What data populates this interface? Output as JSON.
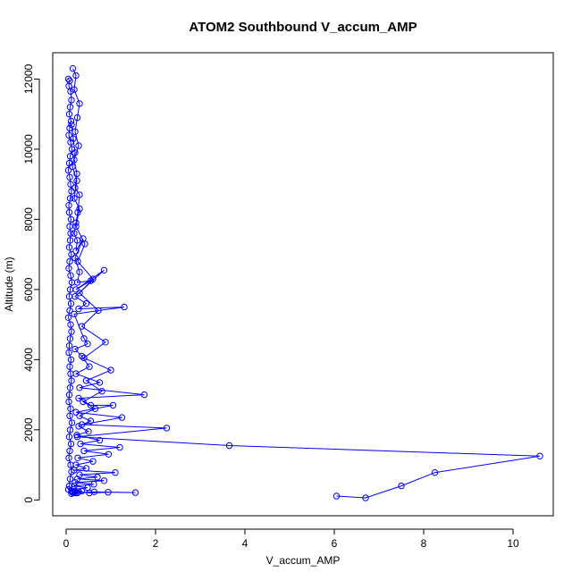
{
  "chart_data": {
    "type": "line",
    "title": "ATOM2 Southbound V_accum_AMP",
    "xlabel": "V_accum_AMP",
    "ylabel": "Altitude (m)",
    "xlim": [
      -0.3,
      10.9
    ],
    "ylim": [
      -450,
      12750
    ],
    "xticks": [
      0,
      2,
      4,
      6,
      8,
      10
    ],
    "yticks": [
      0,
      2000,
      4000,
      6000,
      8000,
      10000,
      12000
    ],
    "line_color": "#0000ff",
    "marker": "open-circle",
    "grid": false,
    "legend": "none",
    "series": [
      {
        "x": [
          0.05,
          0.08,
          0.06,
          0.1,
          0.12,
          0.09,
          0.07,
          0.11,
          0.08,
          0.06,
          0.1,
          0.13,
          0.09,
          0.07,
          0.05,
          0.08,
          0.1,
          0.12,
          0.09,
          0.06,
          0.07,
          0.11,
          0.08,
          0.1,
          0.09,
          0.07,
          0.12,
          0.08,
          0.06,
          0.1,
          0.13,
          0.09,
          0.07,
          0.11,
          0.08,
          0.05,
          0.1,
          0.12,
          0.09,
          0.07,
          0.06,
          0.11,
          0.08,
          0.1,
          0.12,
          0.09,
          0.07,
          0.06,
          0.1,
          0.08,
          0.13,
          0.09,
          0.07,
          0.11,
          0.08,
          0.06,
          0.1,
          0.12,
          0.09,
          0.07,
          0.05,
          0.12,
          0.16,
          0.28,
          0.52,
          0.94,
          1.55,
          0.63,
          0.25,
          0.2,
          0.15
        ],
        "y": [
          12000,
          11950,
          11800,
          11650,
          11400,
          11200,
          11000,
          10800,
          10600,
          10400,
          10200,
          10000,
          9800,
          9600,
          9400,
          9200,
          9000,
          8800,
          8600,
          8400,
          8200,
          8000,
          7800,
          7600,
          7400,
          7200,
          7000,
          6800,
          6600,
          6400,
          6200,
          6000,
          5800,
          5600,
          5400,
          5200,
          5000,
          4800,
          4600,
          4400,
          4200,
          4000,
          3800,
          3600,
          3400,
          3200,
          3000,
          2800,
          2600,
          2400,
          2200,
          2000,
          1800,
          1600,
          1400,
          1200,
          1000,
          800,
          600,
          400,
          300,
          250,
          230,
          240,
          200,
          220,
          210,
          230,
          200,
          240,
          210
        ]
      },
      {
        "x": [
          0.15,
          0.22,
          0.18,
          0.3,
          0.25,
          0.2,
          0.28,
          0.18,
          0.24,
          0.2,
          0.3,
          0.26,
          0.22,
          0.18,
          0.25,
          0.22,
          0.38,
          0.2,
          0.3,
          0.25,
          0.55,
          0.22,
          0.85,
          0.2,
          0.45,
          0.28,
          1.3,
          0.18,
          0.4,
          0.48,
          0.2,
          0.35,
          0.52,
          0.22,
          0.75,
          0.3,
          1.75,
          0.28,
          0.55,
          1.05,
          0.22,
          1.25,
          0.35,
          2.25,
          0.25,
          3.65,
          10.6,
          8.25,
          7.5,
          6.7,
          6.05
        ],
        "y": [
          12300,
          12100,
          11700,
          11300,
          10900,
          10500,
          10100,
          9700,
          9300,
          8900,
          8700,
          8200,
          7900,
          7600,
          7400,
          7100,
          7450,
          6900,
          6500,
          6200,
          6250,
          6000,
          6550,
          5800,
          5600,
          5450,
          5500,
          5300,
          4600,
          4450,
          4300,
          4100,
          3800,
          3600,
          3350,
          3200,
          3000,
          2900,
          2700,
          2700,
          2500,
          2350,
          2150,
          2050,
          1800,
          1550,
          1250,
          780,
          400,
          60,
          110
        ]
      },
      {
        "x": [
          0.12,
          0.16,
          0.2,
          0.14,
          0.24,
          0.18,
          0.3,
          0.22,
          0.42,
          0.26,
          0.6,
          0.3,
          0.72,
          0.35,
          0.88,
          0.4,
          1.0,
          0.45,
          0.8,
          0.38,
          0.65,
          0.3,
          0.55,
          0.28,
          0.5,
          0.24,
          0.75,
          0.32,
          1.2,
          0.4,
          0.95,
          0.26,
          0.6,
          0.22,
          0.45,
          0.18,
          1.1,
          0.3,
          0.7,
          0.25,
          0.85,
          0.2,
          0.62,
          0.18,
          0.48,
          0.16,
          0.35,
          0.14,
          0.2,
          0.12
        ],
        "y": [
          10700,
          10300,
          9900,
          9500,
          9100,
          8600,
          8300,
          7800,
          7300,
          6800,
          6300,
          5900,
          5400,
          4950,
          4500,
          4050,
          3700,
          3400,
          3100,
          2800,
          2600,
          2400,
          2250,
          2100,
          1950,
          1850,
          1700,
          1600,
          1500,
          1400,
          1300,
          1200,
          1100,
          1000,
          900,
          850,
          780,
          720,
          650,
          600,
          550,
          500,
          450,
          400,
          350,
          300,
          250,
          220,
          200,
          180
        ]
      }
    ]
  }
}
